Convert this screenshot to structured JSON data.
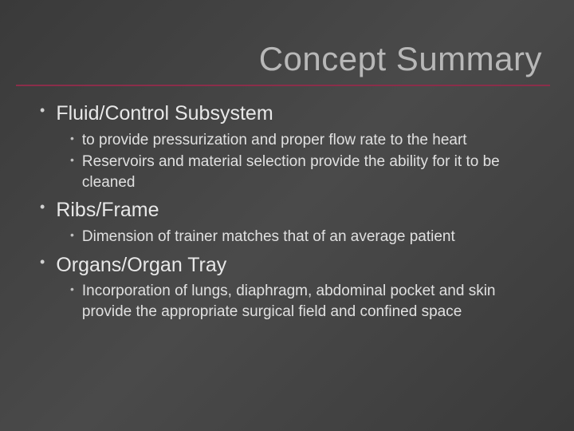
{
  "title": "Concept Summary",
  "colors": {
    "background_gradient_start": "#3a3a3a",
    "background_gradient_mid": "#4a4a4a",
    "background_gradient_end": "#3a3a3a",
    "title_color": "#b8b8b8",
    "divider_color": "#8b2e4a",
    "text_color": "#e8e8e8",
    "sub_text_color": "#e0e0e0"
  },
  "typography": {
    "title_fontsize": 42,
    "section_fontsize": 25,
    "sub_fontsize": 19
  },
  "sections": [
    {
      "heading": "Fluid/Control Subsystem",
      "items": [
        "to provide pressurization and proper flow rate to the heart",
        "Reservoirs and material selection provide the ability for it to be cleaned"
      ]
    },
    {
      "heading": "Ribs/Frame",
      "items": [
        "Dimension of trainer matches that of an average patient"
      ]
    },
    {
      "heading": "Organs/Organ Tray",
      "items": [
        "Incorporation of lungs, diaphragm, abdominal pocket and skin provide the appropriate surgical field and confined space"
      ]
    }
  ]
}
